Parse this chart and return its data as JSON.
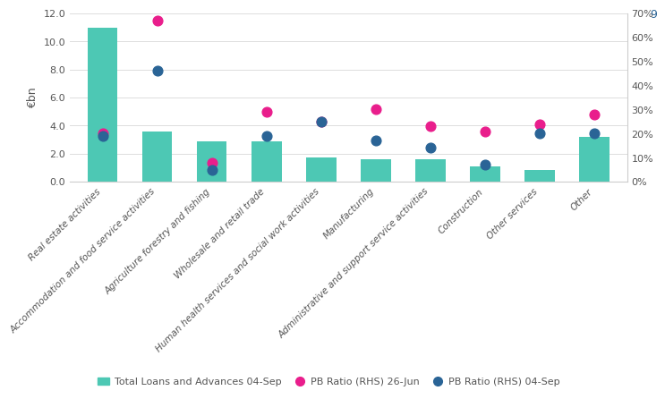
{
  "categories": [
    "Real estate activities",
    "Accommodation and food service activities",
    "Agriculture forestry and fishing",
    "Wholesale and retail trade",
    "Human health services and social work activities",
    "Manufacturing",
    "Administrative and support service activities",
    "Construction",
    "Other services",
    "Other"
  ],
  "bar_values": [
    11.0,
    3.6,
    2.9,
    2.9,
    1.7,
    1.6,
    1.6,
    1.1,
    0.85,
    3.2
  ],
  "pb_ratio_jun": [
    0.2,
    0.67,
    0.08,
    0.29,
    0.25,
    0.3,
    0.23,
    0.21,
    0.24,
    0.28
  ],
  "pb_ratio_sep": [
    0.19,
    0.46,
    0.05,
    0.19,
    0.25,
    0.17,
    0.14,
    0.07,
    0.2,
    0.2
  ],
  "bar_color": "#4DC8B4",
  "jun_color": "#E91E8C",
  "sep_color": "#2A6496",
  "ylabel_left": "€bn",
  "ylim_left": [
    0,
    12.0
  ],
  "ylim_right": [
    0,
    0.7
  ],
  "yticks_left": [
    0.0,
    2.0,
    4.0,
    6.0,
    8.0,
    10.0,
    12.0
  ],
  "yticks_right": [
    0.0,
    0.1,
    0.2,
    0.3,
    0.4,
    0.5,
    0.6,
    0.7
  ],
  "ytick_labels_right": [
    "0%",
    "10%",
    "20%",
    "30%",
    "40%",
    "50%",
    "60%",
    "70%"
  ],
  "legend_labels": [
    "Total Loans and Advances 04-Sep",
    "PB Ratio (RHS) 26-Jun",
    "PB Ratio (RHS) 04-Sep"
  ],
  "page_number": "9",
  "background_color": "#ffffff"
}
